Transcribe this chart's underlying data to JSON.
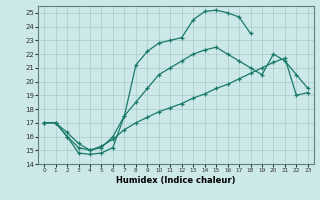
{
  "xlabel": "Humidex (Indice chaleur)",
  "xlim": [
    -0.5,
    23.5
  ],
  "ylim": [
    14,
    25.5
  ],
  "xticks": [
    0,
    1,
    2,
    3,
    4,
    5,
    6,
    7,
    8,
    9,
    10,
    11,
    12,
    13,
    14,
    15,
    16,
    17,
    18,
    19,
    20,
    21,
    22,
    23
  ],
  "yticks": [
    14,
    15,
    16,
    17,
    18,
    19,
    20,
    21,
    22,
    23,
    24,
    25
  ],
  "bg_color": "#cce8e8",
  "grid_color": "#aacccc",
  "line_color": "#1a7a6a",
  "line1_x": [
    0,
    1,
    2,
    3,
    4,
    5,
    6,
    7,
    8,
    9,
    10,
    11,
    12,
    13,
    14,
    15,
    16,
    17,
    18
  ],
  "line1_y": [
    17,
    17,
    16,
    14.8,
    14.7,
    14.8,
    15.2,
    17.5,
    21.2,
    22.2,
    22.8,
    23.0,
    23.2,
    24.5,
    25.1,
    25.2,
    25.0,
    24.7,
    23.5
  ],
  "line2_x": [
    0,
    1,
    2,
    3,
    4,
    5,
    6,
    7,
    8,
    9,
    10,
    11,
    12,
    13,
    14,
    15,
    16,
    17,
    18,
    19,
    20,
    21,
    22,
    23
  ],
  "line2_y": [
    17,
    17,
    16.3,
    15.5,
    15.0,
    15.2,
    16.0,
    17.5,
    18.5,
    19.5,
    20.5,
    21.0,
    21.5,
    22.0,
    22.3,
    22.5,
    22.0,
    21.5,
    21.0,
    20.5,
    22.0,
    21.5,
    20.5,
    19.5
  ],
  "line3_x": [
    0,
    1,
    2,
    3,
    4,
    5,
    6,
    7,
    8,
    9,
    10,
    11,
    12,
    13,
    14,
    15,
    16,
    17,
    18,
    19,
    20,
    21,
    22,
    23
  ],
  "line3_y": [
    17,
    17,
    16.0,
    15.2,
    15.0,
    15.3,
    15.8,
    16.5,
    17.0,
    17.4,
    17.8,
    18.1,
    18.4,
    18.8,
    19.1,
    19.5,
    19.8,
    20.2,
    20.6,
    21.0,
    21.4,
    21.7,
    19.0,
    19.2
  ]
}
